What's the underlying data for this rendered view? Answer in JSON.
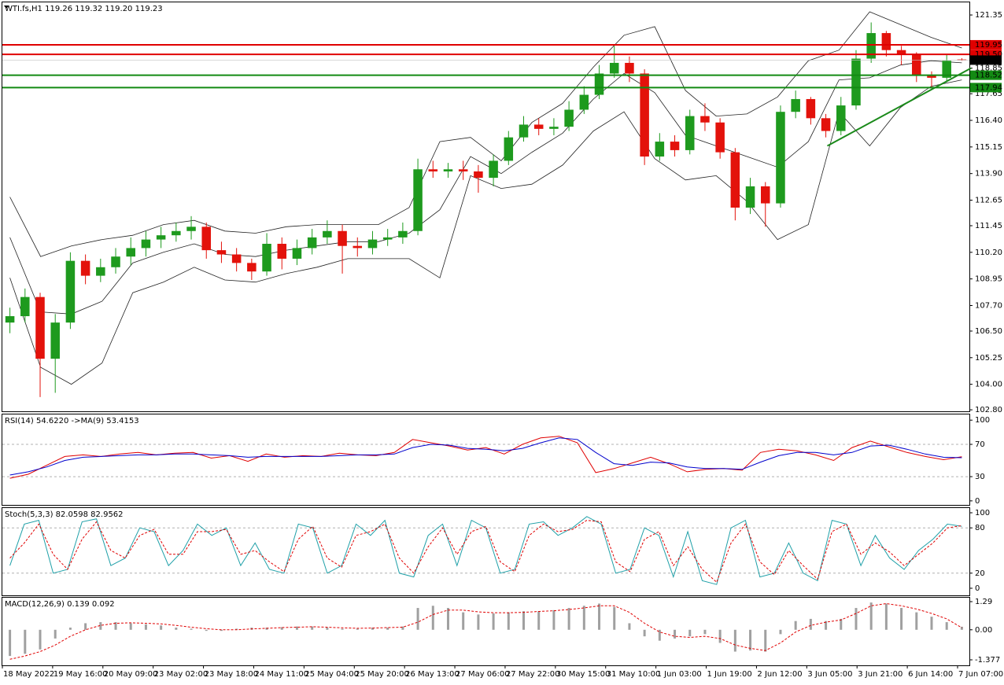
{
  "chart_data": [
    {
      "type": "candlestick",
      "header": "WTI.fs,H1  119.26 119.32 119.20 119.23",
      "open": [
        106.9,
        107.2,
        108.1,
        105.2,
        106.9,
        109.8,
        109.1,
        109.5,
        110.0,
        110.4,
        110.8,
        111.0,
        111.2,
        111.4,
        110.3,
        110.1,
        109.7,
        109.3,
        110.6,
        109.9,
        110.4,
        110.9,
        111.2,
        110.5,
        110.4,
        110.8,
        110.9,
        111.2,
        114.1,
        114.0,
        114.1,
        114.0,
        113.7,
        114.5,
        115.6,
        116.2,
        116.0,
        116.1,
        116.9,
        117.6,
        118.6,
        119.1,
        118.6,
        114.7,
        115.4,
        115.0,
        116.6,
        116.3,
        114.9,
        112.3,
        113.3,
        112.5,
        116.8,
        117.4,
        116.5,
        115.9,
        117.1,
        119.3,
        120.5,
        119.7,
        119.5,
        118.5,
        118.4,
        119.26
      ],
      "high": [
        107.6,
        108.5,
        108.3,
        107.3,
        110.2,
        110.1,
        109.9,
        110.4,
        110.9,
        111.2,
        111.4,
        111.6,
        111.9,
        111.6,
        110.7,
        110.4,
        109.9,
        111.1,
        110.9,
        110.8,
        111.3,
        111.7,
        111.5,
        110.9,
        111.2,
        111.3,
        111.6,
        114.6,
        114.5,
        114.4,
        114.5,
        114.3,
        114.8,
        115.9,
        116.6,
        116.5,
        116.5,
        117.3,
        118.0,
        119.0,
        119.9,
        119.4,
        118.8,
        115.8,
        115.7,
        116.9,
        117.2,
        116.5,
        115.1,
        113.7,
        113.5,
        117.1,
        117.8,
        117.5,
        116.7,
        117.5,
        119.7,
        121.0,
        120.6,
        119.9,
        119.6,
        118.7,
        119.5,
        119.32
      ],
      "low": [
        106.4,
        106.9,
        103.4,
        103.6,
        106.6,
        108.7,
        108.8,
        109.2,
        109.6,
        110.0,
        110.4,
        110.7,
        110.8,
        109.9,
        109.7,
        109.3,
        108.9,
        109.1,
        109.4,
        109.6,
        110.1,
        110.6,
        109.2,
        110.0,
        110.1,
        110.5,
        110.6,
        111.0,
        113.7,
        113.7,
        113.6,
        113.0,
        113.3,
        114.3,
        115.4,
        115.7,
        115.7,
        115.9,
        116.7,
        117.4,
        118.4,
        118.2,
        114.3,
        114.5,
        114.7,
        114.8,
        115.9,
        114.6,
        111.7,
        112.0,
        111.4,
        112.3,
        116.5,
        116.2,
        115.6,
        115.7,
        116.9,
        119.1,
        119.4,
        119.0,
        118.2,
        117.9,
        118.2,
        119.2
      ],
      "close": [
        107.2,
        108.1,
        105.2,
        106.9,
        109.8,
        109.1,
        109.5,
        110.0,
        110.4,
        110.8,
        111.0,
        111.2,
        111.4,
        110.3,
        110.1,
        109.7,
        109.3,
        110.6,
        109.9,
        110.4,
        110.9,
        111.2,
        110.5,
        110.4,
        110.8,
        110.9,
        111.2,
        114.1,
        114.0,
        114.1,
        114.0,
        113.7,
        114.5,
        115.6,
        116.2,
        116.0,
        116.1,
        116.9,
        117.6,
        118.6,
        119.1,
        118.6,
        114.7,
        115.4,
        115.0,
        116.6,
        116.3,
        114.9,
        112.3,
        113.3,
        112.5,
        116.8,
        117.4,
        116.5,
        115.9,
        117.1,
        119.3,
        120.5,
        119.7,
        119.5,
        118.5,
        118.4,
        119.2,
        119.23
      ],
      "up_color": "#1e9a1e",
      "down_color": "#e3120b",
      "overlays": [
        {
          "color": "#222222",
          "values": [
            112.8,
            110.0,
            110.5,
            110.8,
            111.0,
            111.5,
            111.7,
            111.2,
            111.1,
            111.4,
            111.5,
            111.5,
            111.5,
            112.3,
            115.4,
            115.6,
            114.5,
            116.3,
            117.2,
            118.9,
            120.4,
            120.8,
            117.8,
            116.6,
            116.7,
            117.5,
            119.2,
            119.7,
            121.5,
            120.9,
            120.3,
            119.8
          ]
        },
        {
          "color": "#222222",
          "values": [
            110.9,
            107.4,
            107.3,
            107.9,
            109.7,
            110.2,
            110.6,
            110.1,
            110.0,
            110.3,
            110.5,
            110.7,
            110.7,
            111.1,
            112.2,
            114.7,
            113.9,
            114.9,
            115.8,
            117.4,
            118.6,
            117.7,
            115.7,
            115.2,
            114.7,
            114.2,
            115.4,
            118.3,
            118.4,
            119.0,
            119.2,
            119.1
          ]
        },
        {
          "color": "#222222",
          "values": [
            109.0,
            104.8,
            104.0,
            105.0,
            108.3,
            108.8,
            109.5,
            108.9,
            108.8,
            109.2,
            109.5,
            109.9,
            109.9,
            109.9,
            109.0,
            113.8,
            113.2,
            113.4,
            114.3,
            115.9,
            116.8,
            114.6,
            113.6,
            113.8,
            112.6,
            110.8,
            111.5,
            116.8,
            115.2,
            117.0,
            118.0,
            118.3
          ]
        }
      ],
      "hlines": [
        {
          "value": 119.95,
          "color": "#e00000"
        },
        {
          "value": 119.5,
          "label": "119.50",
          "color": "#e00000"
        },
        {
          "value": 118.52,
          "color": "#138a13"
        },
        {
          "value": 117.94,
          "color": "#138a13"
        }
      ],
      "last_price": {
        "value": 119.23,
        "color": "#000000"
      },
      "trendline": {
        "x": [
          54.1,
          63.6
        ],
        "y": [
          115.2,
          118.85
        ],
        "color": "#1a8a1a"
      },
      "ylim": [
        102.73,
        121.98
      ],
      "yticks": [
        121.35,
        118.85,
        117.65,
        {
          "value": 116.4,
          "label": "116.40"
        },
        115.15,
        {
          "value": 113.9,
          "label": "113.90"
        },
        112.65,
        111.45,
        {
          "value": 110.2,
          "label": "110.20"
        },
        108.95,
        {
          "value": 107.7,
          "label": "107.70"
        },
        {
          "value": 106.5,
          "label": "106.50"
        },
        105.25,
        {
          "value": 104,
          "label": "104.00"
        },
        {
          "value": 102.8,
          "label": "102.80"
        }
      ],
      "x_labels": [
        "18 May 2022",
        "19 May 16:00",
        "20 May 09:00",
        "23 May 02:00",
        "23 May 18:00",
        "24 May 11:00",
        "25 May 04:00",
        "25 May 20:00",
        "26 May 13:00",
        "27 May 06:00",
        "27 May 22:00",
        "30 May 15:00",
        "31 May 10:00",
        "1 Jun 03:00",
        "1 Jun 19:00",
        "2 Jun 12:00",
        "3 Jun 05:00",
        "3 Jun 21:00",
        "6 Jun 14:00",
        "7 Jun 07:00"
      ]
    },
    {
      "type": "line",
      "header": "RSI(14) 54.6220  ->MA(9) 53.4153",
      "series": [
        {
          "color": "#e00000",
          "style": "solid",
          "values": [
            28,
            33,
            44,
            55,
            57,
            55,
            58,
            60,
            57,
            59,
            60,
            53,
            56,
            49,
            58,
            54,
            56,
            55,
            59,
            57,
            56,
            60,
            76,
            72,
            68,
            63,
            66,
            58,
            70,
            78,
            80,
            72,
            35,
            40,
            47,
            54,
            46,
            36,
            39,
            40,
            38,
            60,
            64,
            62,
            57,
            50,
            66,
            74,
            67,
            60,
            55,
            51,
            54.622
          ]
        },
        {
          "color": "#0000cc",
          "style": "solid",
          "values": [
            32,
            36,
            42,
            50,
            54,
            55,
            56,
            57,
            57,
            58,
            58,
            57,
            56,
            54,
            55,
            55,
            55,
            55,
            56,
            57,
            57,
            58,
            66,
            70,
            69,
            65,
            64,
            62,
            65,
            72,
            78,
            76,
            60,
            46,
            44,
            48,
            47,
            42,
            40,
            40,
            39,
            48,
            56,
            60,
            60,
            57,
            60,
            68,
            69,
            64,
            58,
            54,
            53.4153
          ]
        }
      ],
      "levels": [
        70,
        30
      ],
      "ylim": [
        -5,
        108
      ],
      "yticks": [
        100,
        70,
        30,
        0
      ]
    },
    {
      "type": "line",
      "header": "Stoch(5,3,3) 82.0598 82.9562",
      "series": [
        {
          "color": "#1fa0a8",
          "style": "solid",
          "values": [
            30,
            85,
            90,
            20,
            25,
            88,
            92,
            30,
            40,
            80,
            75,
            30,
            50,
            85,
            70,
            80,
            30,
            60,
            25,
            20,
            85,
            80,
            20,
            30,
            85,
            70,
            90,
            20,
            15,
            70,
            85,
            30,
            90,
            80,
            20,
            25,
            85,
            88,
            70,
            80,
            95,
            85,
            20,
            25,
            80,
            70,
            15,
            75,
            10,
            5,
            80,
            90,
            15,
            20,
            60,
            20,
            10,
            90,
            85,
            30,
            70,
            40,
            25,
            50,
            65,
            85,
            82.0598
          ]
        },
        {
          "color": "#e00000",
          "style": "dashed",
          "values": [
            40,
            60,
            85,
            45,
            25,
            65,
            88,
            50,
            40,
            70,
            78,
            45,
            45,
            75,
            75,
            78,
            45,
            50,
            35,
            22,
            65,
            82,
            40,
            28,
            70,
            75,
            85,
            40,
            20,
            55,
            80,
            45,
            75,
            82,
            35,
            22,
            70,
            85,
            75,
            78,
            90,
            88,
            35,
            22,
            65,
            75,
            30,
            55,
            25,
            8,
            60,
            85,
            35,
            18,
            50,
            30,
            12,
            75,
            85,
            45,
            60,
            48,
            30,
            45,
            60,
            80,
            82.9562
          ]
        }
      ],
      "levels": [
        80,
        20
      ],
      "ylim": [
        -9.4,
        107.3
      ],
      "yticks": [
        100,
        80,
        20,
        0
      ]
    },
    {
      "type": "macd",
      "header": "MACD(12,26,9) 0.139 0.092",
      "series": [
        {
          "color": "#a0a0a0",
          "style": "bar",
          "values": [
            -1.2,
            -1.1,
            -0.9,
            -0.4,
            0.1,
            0.3,
            0.35,
            0.35,
            0.3,
            0.25,
            0.2,
            0.1,
            0.05,
            -0.05,
            -0.05,
            0.05,
            0.1,
            0.1,
            0.12,
            0.15,
            0.15,
            0.1,
            0.05,
            0.05,
            0.1,
            0.1,
            0.15,
            1.0,
            1.1,
            1.0,
            0.8,
            0.7,
            0.75,
            0.8,
            0.85,
            0.85,
            0.9,
            1.0,
            1.1,
            1.2,
            1.05,
            0.3,
            -0.3,
            -0.5,
            -0.4,
            -0.3,
            -0.2,
            -0.6,
            -1.0,
            -0.95,
            -1.0,
            -0.2,
            0.4,
            0.5,
            0.4,
            0.5,
            1.0,
            1.25,
            1.2,
            1.0,
            0.8,
            0.6,
            0.35,
            0.139
          ]
        },
        {
          "color": "#e00000",
          "style": "dashed",
          "values": [
            -1.35,
            -1.2,
            -1.0,
            -0.7,
            -0.3,
            0.0,
            0.2,
            0.3,
            0.32,
            0.3,
            0.27,
            0.2,
            0.12,
            0.05,
            0.0,
            0.0,
            0.04,
            0.07,
            0.1,
            0.12,
            0.14,
            0.12,
            0.09,
            0.07,
            0.08,
            0.1,
            0.12,
            0.35,
            0.7,
            0.9,
            0.9,
            0.82,
            0.78,
            0.78,
            0.8,
            0.84,
            0.87,
            0.93,
            1.0,
            1.1,
            1.1,
            0.8,
            0.3,
            -0.1,
            -0.3,
            -0.35,
            -0.3,
            -0.4,
            -0.7,
            -0.85,
            -0.95,
            -0.6,
            -0.1,
            0.2,
            0.35,
            0.45,
            0.75,
            1.1,
            1.2,
            1.1,
            0.95,
            0.75,
            0.5,
            0.092
          ]
        }
      ],
      "ylim": [
        -1.629,
        1.506
      ],
      "yticks": [
        1.29,
        {
          "value": 0,
          "label": "0.00"
        },
        -1.377
      ]
    }
  ]
}
